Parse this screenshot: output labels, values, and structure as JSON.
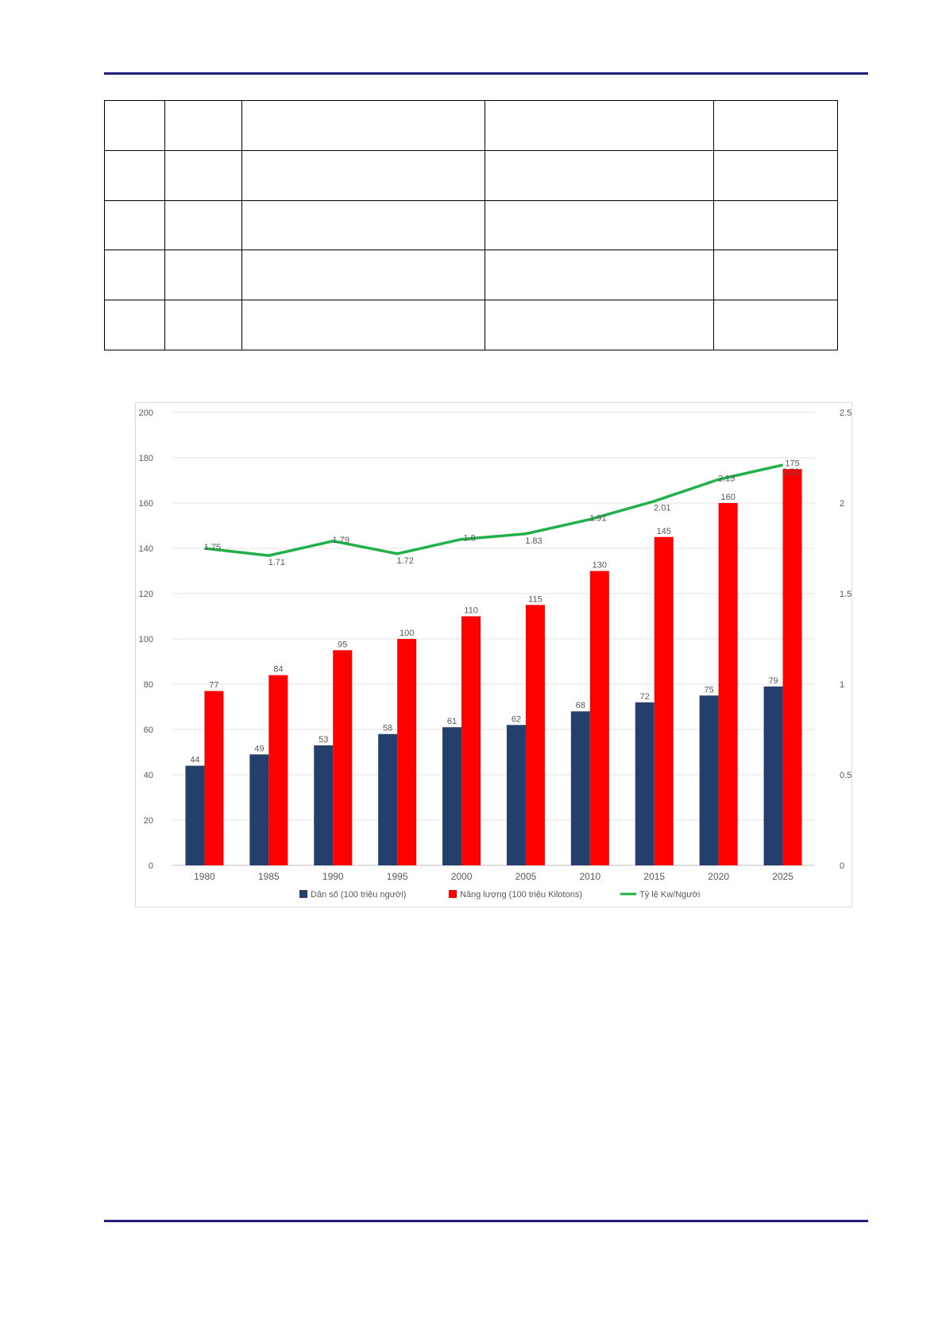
{
  "chart_data": {
    "type": "bar",
    "categories": [
      "1980",
      "1985",
      "1990",
      "1995",
      "2000",
      "2005",
      "2010",
      "2015",
      "2020",
      "2025"
    ],
    "series": [
      {
        "name": "Dân số (100 triệu người)",
        "kind": "bar",
        "axis": "left",
        "color": "#243f6b",
        "values": [
          44,
          49,
          53,
          58,
          61,
          62,
          68,
          72,
          75,
          79
        ]
      },
      {
        "name": "Năng lượng (100 triệu Kilotons)",
        "kind": "bar",
        "axis": "left",
        "color": "#ff0000",
        "values": [
          77,
          84,
          95,
          100,
          110,
          115,
          130,
          145,
          160,
          175
        ]
      },
      {
        "name": "Tỷ lệ Kw/Người",
        "kind": "line",
        "axis": "right",
        "color": "#22b04a",
        "values": [
          1.75,
          1.71,
          1.79,
          1.72,
          1.8,
          1.83,
          1.91,
          2.01,
          2.13,
          2.21
        ]
      }
    ],
    "point_labels": [
      [
        "44",
        "49",
        "53",
        "58",
        "61",
        "62",
        "68",
        "72",
        "75",
        "79"
      ],
      [
        "77",
        "84",
        "95",
        "100",
        "110",
        "115",
        "130",
        "145",
        "160",
        "175"
      ],
      [
        "1.75",
        "1.71",
        "1.79",
        "1.72",
        "1.8",
        "1.83",
        "1.91",
        "2.01",
        "2.13",
        "2.21"
      ]
    ],
    "ylim": [
      0,
      200
    ],
    "yticks": [
      "0",
      "20",
      "40",
      "60",
      "80",
      "100",
      "120",
      "140",
      "160",
      "180",
      "200"
    ],
    "y2lim": [
      0,
      2.5
    ],
    "y2ticks": [
      "0",
      "0.5",
      "1",
      "1.5",
      "2",
      "2.5"
    ],
    "grid": true,
    "legend": "bottom"
  }
}
